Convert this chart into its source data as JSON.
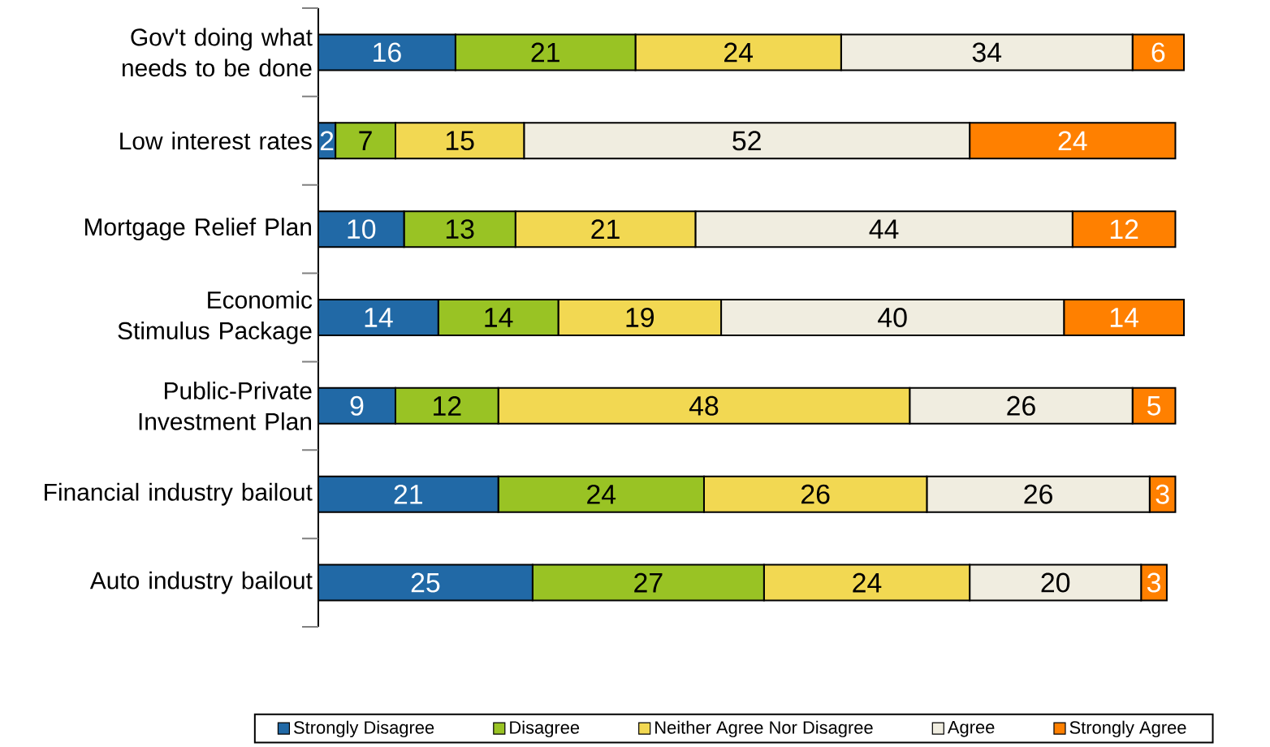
{
  "chart_data": {
    "type": "bar",
    "orientation": "horizontal",
    "stacked": true,
    "data_labels": true,
    "legend": "bottom",
    "categories": [
      "Gov't doing what needs to be done",
      "Low interest rates",
      "Mortgage Relief Plan",
      "Economic Stimulus Package",
      "Public-Private Investment Plan",
      "Financial industry bailout",
      "Auto industry bailout"
    ],
    "series": [
      {
        "name": "Strongly Disagree",
        "color": "#2169a6",
        "values": [
          16,
          2,
          10,
          14,
          9,
          21,
          25
        ]
      },
      {
        "name": "Disagree",
        "color": "#99c324",
        "values": [
          21,
          7,
          13,
          14,
          12,
          24,
          27
        ]
      },
      {
        "name": "Neither Agree Nor Disagree",
        "color": "#f2d852",
        "values": [
          24,
          15,
          21,
          19,
          48,
          26,
          24
        ]
      },
      {
        "name": "Agree",
        "color": "#f0ede0",
        "values": [
          34,
          52,
          44,
          40,
          26,
          26,
          20
        ]
      },
      {
        "name": "Strongly Agree",
        "color": "#ff8000",
        "values": [
          6,
          24,
          12,
          14,
          5,
          3,
          3
        ]
      }
    ]
  }
}
